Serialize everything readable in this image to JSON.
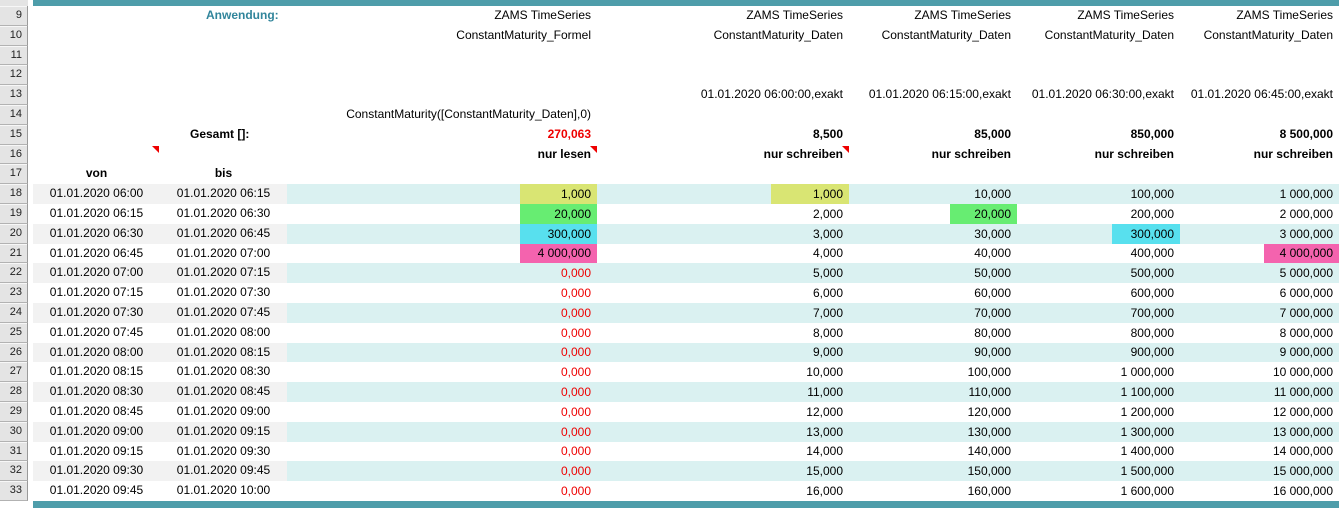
{
  "colors": {
    "teal": "#4e9daa",
    "teal_text": "#31859b",
    "band_cyan": "#daf1f1",
    "band_gray": "#f2f2f2",
    "rowhead_bg": "#e4e4e4",
    "red": "#ee0000",
    "hl_yellowgreen": "#d9e573",
    "hl_green": "#67ed72",
    "hl_cyan": "#58e0ee",
    "hl_pink": "#f463ae"
  },
  "row_header": {
    "numbers": [
      9,
      10,
      11,
      12,
      13,
      14,
      15,
      16,
      17,
      18,
      19,
      20,
      21,
      22,
      23,
      24,
      25,
      26,
      27,
      28,
      29,
      30,
      31,
      32,
      33
    ]
  },
  "header": {
    "anwendung_label": "Anwendung:",
    "gesamt_label": "Gesamt []:",
    "von_label": "von",
    "bis_label": "bis",
    "von_comment": true,
    "columns": [
      {
        "line1": "ZAMS TimeSeries",
        "line2": "ConstantMaturity_Formel",
        "timestamp": "",
        "formula": "ConstantMaturity([ConstantMaturity_Daten],0)",
        "gesamt": "270,063",
        "gesamt_red": true,
        "mode": "nur lesen",
        "has_comment": true
      },
      {
        "line1": "ZAMS TimeSeries",
        "line2": "ConstantMaturity_Daten",
        "timestamp": "01.01.2020 06:00:00,exakt",
        "formula": "",
        "gesamt": "8,500",
        "gesamt_red": false,
        "mode": "nur schreiben",
        "has_comment": true
      },
      {
        "line1": "ZAMS TimeSeries",
        "line2": "ConstantMaturity_Daten",
        "timestamp": "01.01.2020 06:15:00,exakt",
        "formula": "",
        "gesamt": "85,000",
        "gesamt_red": false,
        "mode": "nur schreiben",
        "has_comment": false
      },
      {
        "line1": "ZAMS TimeSeries",
        "line2": "ConstantMaturity_Daten",
        "timestamp": "01.01.2020 06:30:00,exakt",
        "formula": "",
        "gesamt": "850,000",
        "gesamt_red": false,
        "mode": "nur schreiben",
        "has_comment": false
      },
      {
        "line1": "ZAMS TimeSeries",
        "line2": "ConstantMaturity_Daten",
        "timestamp": "01.01.2020 06:45:00,exakt",
        "formula": "",
        "gesamt": "8 500,000",
        "gesamt_red": false,
        "mode": "nur schreiben",
        "has_comment": false
      }
    ]
  },
  "grid": {
    "rows": [
      {
        "num": 18,
        "von": "01.01.2020 06:00",
        "bis": "01.01.2020 06:15",
        "cells": [
          {
            "text": "1,000",
            "hl": "yellowgreen"
          },
          {
            "text": "1,000",
            "hl": "yellowgreen"
          },
          {
            "text": "10,000"
          },
          {
            "text": "100,000"
          },
          {
            "text": "1 000,000"
          }
        ]
      },
      {
        "num": 19,
        "von": "01.01.2020 06:15",
        "bis": "01.01.2020 06:30",
        "cells": [
          {
            "text": "20,000",
            "hl": "green"
          },
          {
            "text": "2,000"
          },
          {
            "text": "20,000",
            "hl": "green"
          },
          {
            "text": "200,000"
          },
          {
            "text": "2 000,000"
          }
        ]
      },
      {
        "num": 20,
        "von": "01.01.2020 06:30",
        "bis": "01.01.2020 06:45",
        "cells": [
          {
            "text": "300,000",
            "hl": "cyan"
          },
          {
            "text": "3,000"
          },
          {
            "text": "30,000"
          },
          {
            "text": "300,000",
            "hl": "cyan"
          },
          {
            "text": "3 000,000"
          }
        ]
      },
      {
        "num": 21,
        "von": "01.01.2020 06:45",
        "bis": "01.01.2020 07:00",
        "cells": [
          {
            "text": "4 000,000",
            "hl": "pink"
          },
          {
            "text": "4,000"
          },
          {
            "text": "40,000"
          },
          {
            "text": "400,000"
          },
          {
            "text": "4 000,000",
            "hl": "pink"
          }
        ]
      },
      {
        "num": 22,
        "von": "01.01.2020 07:00",
        "bis": "01.01.2020 07:15",
        "cells": [
          {
            "text": "0,000",
            "red": true
          },
          {
            "text": "5,000"
          },
          {
            "text": "50,000"
          },
          {
            "text": "500,000"
          },
          {
            "text": "5 000,000"
          }
        ]
      },
      {
        "num": 23,
        "von": "01.01.2020 07:15",
        "bis": "01.01.2020 07:30",
        "cells": [
          {
            "text": "0,000",
            "red": true
          },
          {
            "text": "6,000"
          },
          {
            "text": "60,000"
          },
          {
            "text": "600,000"
          },
          {
            "text": "6 000,000"
          }
        ]
      },
      {
        "num": 24,
        "von": "01.01.2020 07:30",
        "bis": "01.01.2020 07:45",
        "cells": [
          {
            "text": "0,000",
            "red": true
          },
          {
            "text": "7,000"
          },
          {
            "text": "70,000"
          },
          {
            "text": "700,000"
          },
          {
            "text": "7 000,000"
          }
        ]
      },
      {
        "num": 25,
        "von": "01.01.2020 07:45",
        "bis": "01.01.2020 08:00",
        "cells": [
          {
            "text": "0,000",
            "red": true
          },
          {
            "text": "8,000"
          },
          {
            "text": "80,000"
          },
          {
            "text": "800,000"
          },
          {
            "text": "8 000,000"
          }
        ]
      },
      {
        "num": 26,
        "von": "01.01.2020 08:00",
        "bis": "01.01.2020 08:15",
        "cells": [
          {
            "text": "0,000",
            "red": true
          },
          {
            "text": "9,000"
          },
          {
            "text": "90,000"
          },
          {
            "text": "900,000"
          },
          {
            "text": "9 000,000"
          }
        ]
      },
      {
        "num": 27,
        "von": "01.01.2020 08:15",
        "bis": "01.01.2020 08:30",
        "cells": [
          {
            "text": "0,000",
            "red": true
          },
          {
            "text": "10,000"
          },
          {
            "text": "100,000"
          },
          {
            "text": "1 000,000"
          },
          {
            "text": "10 000,000"
          }
        ]
      },
      {
        "num": 28,
        "von": "01.01.2020 08:30",
        "bis": "01.01.2020 08:45",
        "cells": [
          {
            "text": "0,000",
            "red": true
          },
          {
            "text": "11,000"
          },
          {
            "text": "110,000"
          },
          {
            "text": "1 100,000"
          },
          {
            "text": "11 000,000"
          }
        ]
      },
      {
        "num": 29,
        "von": "01.01.2020 08:45",
        "bis": "01.01.2020 09:00",
        "cells": [
          {
            "text": "0,000",
            "red": true
          },
          {
            "text": "12,000"
          },
          {
            "text": "120,000"
          },
          {
            "text": "1 200,000"
          },
          {
            "text": "12 000,000"
          }
        ]
      },
      {
        "num": 30,
        "von": "01.01.2020 09:00",
        "bis": "01.01.2020 09:15",
        "cells": [
          {
            "text": "0,000",
            "red": true
          },
          {
            "text": "13,000"
          },
          {
            "text": "130,000"
          },
          {
            "text": "1 300,000"
          },
          {
            "text": "13 000,000"
          }
        ]
      },
      {
        "num": 31,
        "von": "01.01.2020 09:15",
        "bis": "01.01.2020 09:30",
        "cells": [
          {
            "text": "0,000",
            "red": true
          },
          {
            "text": "14,000"
          },
          {
            "text": "140,000"
          },
          {
            "text": "1 400,000"
          },
          {
            "text": "14 000,000"
          }
        ]
      },
      {
        "num": 32,
        "von": "01.01.2020 09:30",
        "bis": "01.01.2020 09:45",
        "cells": [
          {
            "text": "0,000",
            "red": true
          },
          {
            "text": "15,000"
          },
          {
            "text": "150,000"
          },
          {
            "text": "1 500,000"
          },
          {
            "text": "15 000,000"
          }
        ]
      },
      {
        "num": 33,
        "von": "01.01.2020 09:45",
        "bis": "01.01.2020 10:00",
        "cells": [
          {
            "text": "0,000",
            "red": true
          },
          {
            "text": "16,000"
          },
          {
            "text": "160,000"
          },
          {
            "text": "1 600,000"
          },
          {
            "text": "16 000,000"
          }
        ]
      }
    ]
  }
}
